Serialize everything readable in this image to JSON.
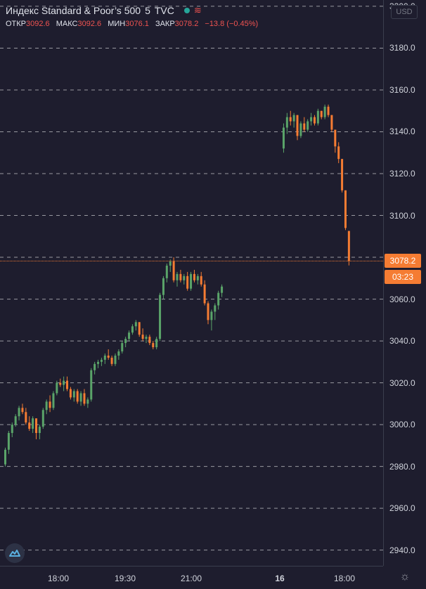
{
  "header": {
    "title": "Индекс Standard & Poor’s 500",
    "interval": "5",
    "exchange": "TVC",
    "ohlc": [
      {
        "label": "ОТКР",
        "value": "3092.6"
      },
      {
        "label": "МАКС",
        "value": "3092.6"
      },
      {
        "label": "МИН",
        "value": "3076.1"
      },
      {
        "label": "ЗАКР",
        "value": "3078.2"
      }
    ],
    "change": "−13.8 (−0.45%)"
  },
  "currency_label": "USD",
  "last_price_label": "3078.2",
  "countdown_label": "03:23",
  "colors": {
    "up": "#5aa469",
    "down": "#f57c33",
    "background": "#1e1d2e",
    "grid": "#ffffff",
    "last_line": "#f57c33"
  },
  "icons": {
    "logo": "tradingview-logo-icon",
    "settings": "gear-icon",
    "status": "live-dot-icon",
    "wave": "wave-icon"
  },
  "chart_data": {
    "type": "candlestick",
    "y_ticks": [
      "3200.0",
      "3180.0",
      "3160.0",
      "3140.0",
      "3120.0",
      "3100.0",
      "3080.0",
      "3060.0",
      "3040.0",
      "3020.0",
      "3000.0",
      "2980.0",
      "2960.0",
      "2940.0"
    ],
    "x_ticks": [
      {
        "label": "18:00",
        "bold": false
      },
      {
        "label": "19:30",
        "bold": false
      },
      {
        "label": "21:00",
        "bold": false
      },
      {
        "label": "16",
        "bold": true
      },
      {
        "label": "18:00",
        "bold": false
      }
    ],
    "ylim": [
      2932.5,
      3203.0
    ],
    "grid": true,
    "last_price": 3078.2,
    "candles": [
      [
        2981,
        2989,
        2980,
        2988
      ],
      [
        2988,
        2997,
        2986,
        2996
      ],
      [
        2996,
        3001,
        2994,
        3000
      ],
      [
        3000,
        3005,
        2999,
        3004
      ],
      [
        3004,
        3009,
        3002,
        3008
      ],
      [
        3008,
        3010,
        3005,
        3006
      ],
      [
        3006,
        3008,
        3000,
        3001
      ],
      [
        3001,
        3004,
        2997,
        2998
      ],
      [
        2998,
        3004,
        2996,
        3003
      ],
      [
        3003,
        3002,
        2993,
        2996
      ],
      [
        2996,
        3000,
        2993,
        2999
      ],
      [
        2999,
        3008,
        2998,
        3007
      ],
      [
        3007,
        3012,
        3005,
        3011
      ],
      [
        3011,
        3014,
        3006,
        3008
      ],
      [
        3008,
        3016,
        3007,
        3015
      ],
      [
        3015,
        3021,
        3014,
        3020
      ],
      [
        3020,
        3022,
        3018,
        3019
      ],
      [
        3019,
        3023,
        3016,
        3021
      ],
      [
        3021,
        3023,
        3016,
        3017
      ],
      [
        3017,
        3018,
        3012,
        3013
      ],
      [
        3013,
        3017,
        3011,
        3016
      ],
      [
        3016,
        3017,
        3010,
        3011
      ],
      [
        3011,
        3016,
        3009,
        3015
      ],
      [
        3015,
        3017,
        3009,
        3010
      ],
      [
        3010,
        3013,
        3008,
        3012
      ],
      [
        3012,
        3027,
        3011,
        3026
      ],
      [
        3026,
        3030,
        3024,
        3029
      ],
      [
        3029,
        3031,
        3027,
        3030
      ],
      [
        3030,
        3032,
        3028,
        3031
      ],
      [
        3031,
        3034,
        3029,
        3033
      ],
      [
        3033,
        3036,
        3031,
        3032
      ],
      [
        3032,
        3033,
        3028,
        3029
      ],
      [
        3029,
        3034,
        3028,
        3033
      ],
      [
        3033,
        3036,
        3031,
        3035
      ],
      [
        3035,
        3040,
        3034,
        3039
      ],
      [
        3039,
        3042,
        3037,
        3041
      ],
      [
        3041,
        3045,
        3040,
        3044
      ],
      [
        3044,
        3048,
        3043,
        3047
      ],
      [
        3047,
        3050,
        3045,
        3049
      ],
      [
        3049,
        3049,
        3042,
        3043
      ],
      [
        3043,
        3046,
        3040,
        3041
      ],
      [
        3041,
        3043,
        3039,
        3042
      ],
      [
        3042,
        3043,
        3038,
        3039
      ],
      [
        3039,
        3040,
        3036,
        3037
      ],
      [
        3037,
        3042,
        3036,
        3041
      ],
      [
        3041,
        3063,
        3040,
        3062
      ],
      [
        3062,
        3071,
        3060,
        3070
      ],
      [
        3070,
        3077,
        3068,
        3076
      ],
      [
        3076,
        3079,
        3073,
        3078
      ],
      [
        3078,
        3080,
        3068,
        3069
      ],
      [
        3069,
        3073,
        3066,
        3072
      ],
      [
        3072,
        3074,
        3068,
        3069
      ],
      [
        3069,
        3072,
        3067,
        3071
      ],
      [
        3071,
        3073,
        3064,
        3065
      ],
      [
        3065,
        3073,
        3064,
        3072
      ],
      [
        3072,
        3074,
        3068,
        3069
      ],
      [
        3069,
        3072,
        3067,
        3071
      ],
      [
        3071,
        3073,
        3066,
        3067
      ],
      [
        3067,
        3069,
        3057,
        3058
      ],
      [
        3058,
        3059,
        3048,
        3050
      ],
      [
        3050,
        3055,
        3045,
        3054
      ],
      [
        3054,
        3058,
        3050,
        3057
      ],
      [
        3057,
        3064,
        3055,
        3063
      ],
      [
        3063,
        3067,
        3061,
        3066
      ],
      [
        3132,
        3144,
        3130,
        3142
      ],
      [
        3142,
        3149,
        3139,
        3147
      ],
      [
        3147,
        3150,
        3143,
        3145
      ],
      [
        3145,
        3149,
        3142,
        3148
      ],
      [
        3148,
        3148,
        3136,
        3138
      ],
      [
        3138,
        3145,
        3137,
        3144
      ],
      [
        3144,
        3147,
        3140,
        3141
      ],
      [
        3141,
        3146,
        3140,
        3145
      ],
      [
        3145,
        3149,
        3143,
        3147
      ],
      [
        3147,
        3148,
        3143,
        3144
      ],
      [
        3144,
        3151,
        3143,
        3150
      ],
      [
        3150,
        3150,
        3146,
        3147
      ],
      [
        3147,
        3153,
        3146,
        3152
      ],
      [
        3152,
        3153,
        3147,
        3148
      ],
      [
        3148,
        3148,
        3140,
        3141
      ],
      [
        3141,
        3141,
        3130,
        3133
      ],
      [
        3133,
        3135,
        3125,
        3127
      ],
      [
        3127,
        3127,
        3111,
        3112
      ],
      [
        3112,
        3112,
        3093,
        3094
      ],
      [
        3092.6,
        3092.6,
        3076.1,
        3078.2
      ]
    ]
  }
}
